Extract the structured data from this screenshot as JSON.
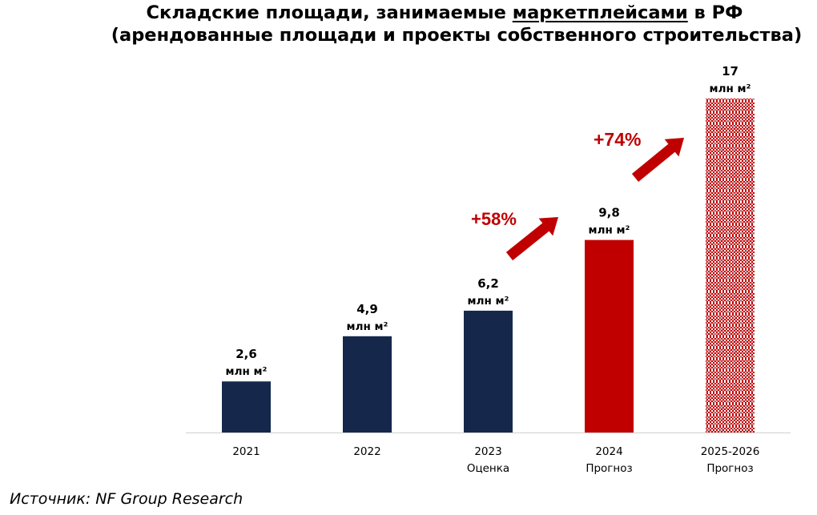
{
  "title": {
    "line1_before": "Складские площади, занимаемые ",
    "line1_underlined": "маркетплейсами",
    "line1_after": " в РФ",
    "line2": "(арендованные площади и проекты собственного строительства)"
  },
  "source": "Источник: NF Group Research",
  "chart_data": {
    "type": "bar",
    "categories": [
      "2021",
      "2022",
      "2023",
      "2024",
      "2025-2026"
    ],
    "category_sublabels": [
      "",
      "",
      "Оценка",
      "Прогноз",
      "Прогноз"
    ],
    "values": [
      2.6,
      4.9,
      6.2,
      9.8,
      17
    ],
    "value_labels": [
      "2,6",
      "4,9",
      "6,2",
      "9,8",
      "17"
    ],
    "unit_label": "млн м²",
    "bar_styles": [
      "solid",
      "solid",
      "solid",
      "solid",
      "hatched"
    ],
    "bar_colors": [
      "#15284b",
      "#15284b",
      "#15284b",
      "#c00000",
      "#c00000"
    ],
    "growth_annotations": [
      {
        "text": "+58%",
        "from": "2023",
        "to": "2024"
      },
      {
        "text": "+74%",
        "from": "2024",
        "to": "2025-2026"
      }
    ],
    "ylim": [
      0,
      17.5
    ],
    "grid": false,
    "legend": "none"
  }
}
